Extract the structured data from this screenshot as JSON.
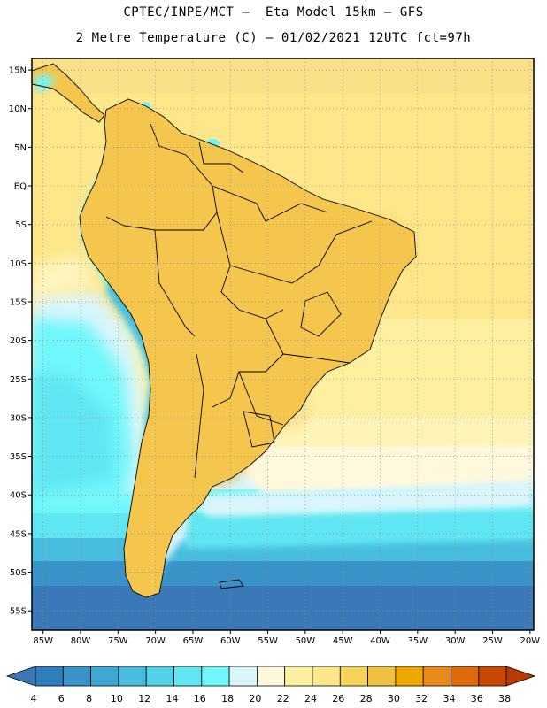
{
  "header": {
    "line1": "CPTEC/INPE/MCT –  Eta Model 15km – GFS",
    "line2": "2 Metre Temperature (C) – 01/02/2021 12UTC fct=97h"
  },
  "map": {
    "lat_labels": [
      "15N",
      "10N",
      "5N",
      "EQ",
      "5S",
      "10S",
      "15S",
      "20S",
      "25S",
      "30S",
      "35S",
      "40S",
      "45S",
      "50S",
      "55S"
    ],
    "lon_labels": [
      "85W",
      "80W",
      "75W",
      "70W",
      "65W",
      "60W",
      "55W",
      "50W",
      "45W",
      "40W",
      "35W",
      "30W",
      "25W",
      "20W"
    ],
    "grid": "dotted",
    "lat_range": [
      -57.5,
      16.5
    ],
    "lon_range": [
      -86.5,
      -19.5
    ]
  },
  "legend": {
    "labels": [
      "4",
      "6",
      "8",
      "10",
      "12",
      "14",
      "16",
      "18",
      "20",
      "22",
      "24",
      "26",
      "28",
      "30",
      "32",
      "34",
      "36",
      "38"
    ],
    "colors": [
      "#3b78b7",
      "#2f7fbf",
      "#3a93c8",
      "#3fa7d3",
      "#48bcde",
      "#52d1e8",
      "#60e6f2",
      "#6ff7fb",
      "#d8f6fb",
      "#fff8dc",
      "#fff0a0",
      "#fde78a",
      "#f7d25a",
      "#f0c040",
      "#f0a800",
      "#e88a18",
      "#df6a0a",
      "#c84800",
      "#b83a00"
    ]
  }
}
